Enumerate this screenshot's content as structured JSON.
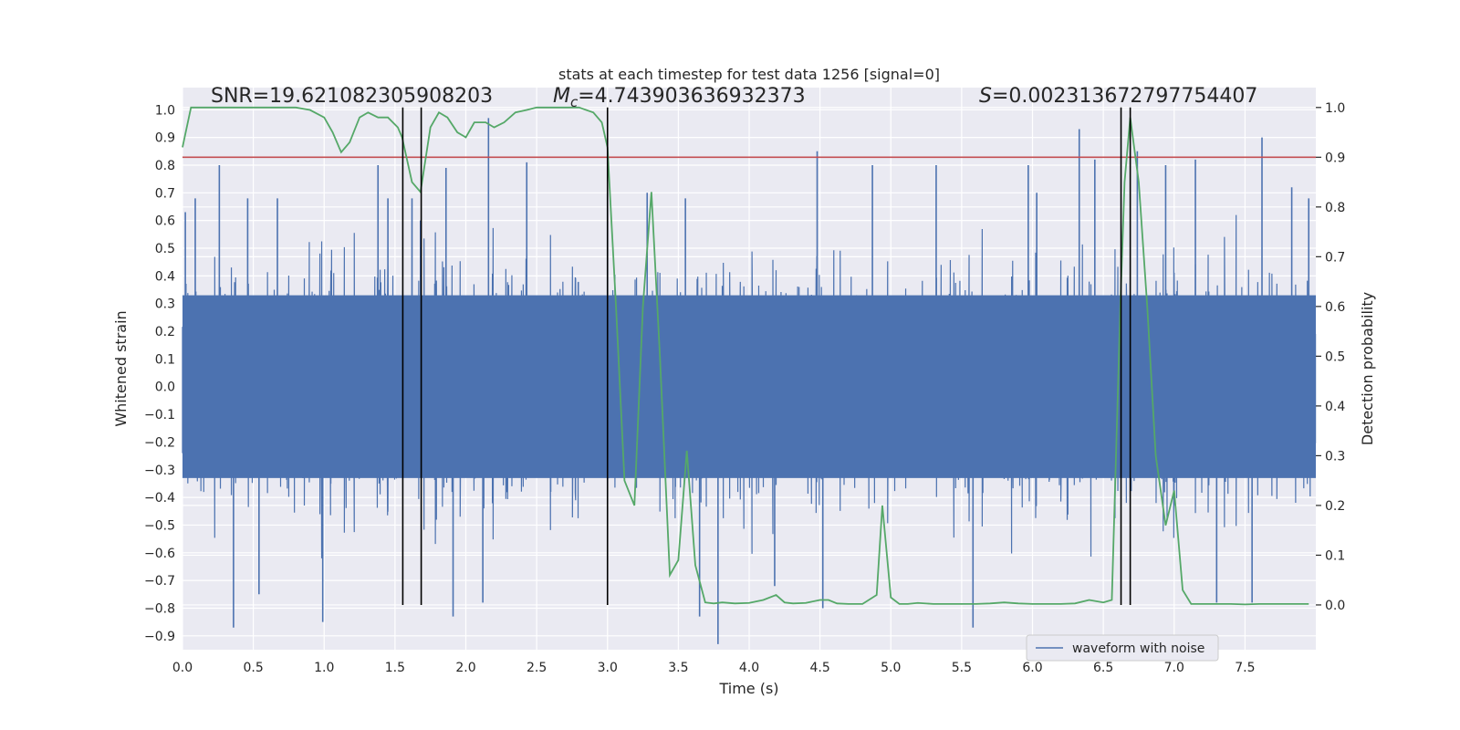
{
  "chart_data": {
    "type": "line",
    "title": "stats at each timestep for test data 1256 [signal=0]",
    "xlabel": "Time (s)",
    "ylabel": "Whitened strain",
    "ylabel_right": "Detection probability",
    "xlim": [
      0.0,
      8.0
    ],
    "ylim": [
      -0.95,
      1.08
    ],
    "ylim_right": [
      -0.09,
      1.04
    ],
    "x_ticks": [
      0.0,
      0.5,
      1.0,
      1.5,
      2.0,
      2.5,
      3.0,
      3.5,
      4.0,
      4.5,
      5.0,
      5.5,
      6.0,
      6.5,
      7.0,
      7.5
    ],
    "x_tick_labels": [
      "0.0",
      "0.5",
      "1.0",
      "1.5",
      "2.0",
      "2.5",
      "3.0",
      "3.5",
      "4.0",
      "4.5",
      "5.0",
      "5.5",
      "6.0",
      "6.5",
      "7.0",
      "7.5"
    ],
    "y_ticks": [
      -0.9,
      -0.8,
      -0.7,
      -0.6,
      -0.5,
      -0.4,
      -0.3,
      -0.2,
      -0.1,
      0.0,
      0.1,
      0.2,
      0.3,
      0.4,
      0.5,
      0.6,
      0.7,
      0.8,
      0.9,
      1.0
    ],
    "y_tick_labels": [
      "−0.9",
      "−0.8",
      "−0.7",
      "−0.6",
      "−0.5",
      "−0.4",
      "−0.3",
      "−0.2",
      "−0.1",
      "0.0",
      "0.1",
      "0.2",
      "0.3",
      "0.4",
      "0.5",
      "0.6",
      "0.7",
      "0.8",
      "0.9",
      "1.0"
    ],
    "y_ticks_right": [
      0.0,
      0.1,
      0.2,
      0.3,
      0.4,
      0.5,
      0.6,
      0.7,
      0.8,
      0.9,
      1.0
    ],
    "y_tick_labels_right": [
      "0.0",
      "0.1",
      "0.2",
      "0.3",
      "0.4",
      "0.5",
      "0.6",
      "0.7",
      "0.8",
      "0.9",
      "1.0"
    ],
    "grid": true,
    "annotations": [
      {
        "text": "SNR=19.621082305908203",
        "x": 0.2,
        "y": 1.02
      },
      {
        "math_symbol": "M",
        "math_sub": "c",
        "value_text": "=4.743903636932373",
        "x": 2.6,
        "y": 1.02
      },
      {
        "math_symbol": "S",
        "value_text": "=0.002313672797754407",
        "x": 5.6,
        "y": 1.02
      }
    ],
    "series": [
      {
        "name": "waveform with noise",
        "axis": "left",
        "color": "#4c72b0",
        "description": "dense whitened-strain noise, 4096 Hz",
        "core_amplitude": 0.33,
        "peaks": [
          {
            "x": 0.02,
            "y": 0.63
          },
          {
            "x": 0.09,
            "y": 0.68
          },
          {
            "x": 0.26,
            "y": 0.8
          },
          {
            "x": 0.36,
            "y": -0.87
          },
          {
            "x": 0.46,
            "y": 0.68
          },
          {
            "x": 0.54,
            "y": -0.75
          },
          {
            "x": 0.67,
            "y": 0.68
          },
          {
            "x": 0.99,
            "y": -0.85
          },
          {
            "x": 1.38,
            "y": 0.8
          },
          {
            "x": 1.45,
            "y": 0.68
          },
          {
            "x": 1.62,
            "y": 0.68
          },
          {
            "x": 1.68,
            "y": 0.6
          },
          {
            "x": 1.86,
            "y": 0.79
          },
          {
            "x": 1.91,
            "y": -0.83
          },
          {
            "x": 2.12,
            "y": -0.78
          },
          {
            "x": 2.16,
            "y": 0.97
          },
          {
            "x": 2.43,
            "y": 0.81
          },
          {
            "x": 3.0,
            "y": 0.7
          },
          {
            "x": 3.28,
            "y": 0.7
          },
          {
            "x": 3.55,
            "y": 0.68
          },
          {
            "x": 3.65,
            "y": -0.83
          },
          {
            "x": 3.78,
            "y": -0.93
          },
          {
            "x": 4.18,
            "y": -0.72
          },
          {
            "x": 4.48,
            "y": 0.85
          },
          {
            "x": 4.52,
            "y": -0.8
          },
          {
            "x": 4.87,
            "y": 0.8
          },
          {
            "x": 5.32,
            "y": 0.8
          },
          {
            "x": 5.58,
            "y": -0.87
          },
          {
            "x": 5.97,
            "y": 0.8
          },
          {
            "x": 6.03,
            "y": 0.7
          },
          {
            "x": 6.33,
            "y": 0.93
          },
          {
            "x": 6.44,
            "y": 0.82
          },
          {
            "x": 6.74,
            "y": 0.85
          },
          {
            "x": 6.94,
            "y": 0.8
          },
          {
            "x": 7.15,
            "y": 0.82
          },
          {
            "x": 7.3,
            "y": -0.78
          },
          {
            "x": 7.55,
            "y": -0.78
          },
          {
            "x": 7.62,
            "y": 0.9
          },
          {
            "x": 7.83,
            "y": 0.72
          },
          {
            "x": 7.95,
            "y": 0.68
          }
        ]
      },
      {
        "name": "detection probability",
        "axis": "right",
        "color": "#55a868",
        "x": [
          0.0,
          0.06,
          0.12,
          0.2,
          0.3,
          0.4,
          0.5,
          0.6,
          0.7,
          0.8,
          0.9,
          1.0,
          1.06,
          1.12,
          1.18,
          1.25,
          1.31,
          1.38,
          1.45,
          1.52,
          1.55,
          1.62,
          1.68,
          1.75,
          1.81,
          1.87,
          1.94,
          2.0,
          2.06,
          2.14,
          2.2,
          2.27,
          2.35,
          2.43,
          2.5,
          2.6,
          2.7,
          2.8,
          2.9,
          2.96,
          3.0,
          3.06,
          3.12,
          3.19,
          3.25,
          3.31,
          3.37,
          3.44,
          3.5,
          3.56,
          3.62,
          3.69,
          3.75,
          3.81,
          3.9,
          4.0,
          4.1,
          4.19,
          4.25,
          4.31,
          4.4,
          4.5,
          4.56,
          4.62,
          4.7,
          4.8,
          4.9,
          4.94,
          5.0,
          5.06,
          5.12,
          5.19,
          5.3,
          5.4,
          5.5,
          5.6,
          5.7,
          5.8,
          5.9,
          6.0,
          6.1,
          6.2,
          6.3,
          6.4,
          6.5,
          6.56,
          6.62,
          6.65,
          6.69,
          6.75,
          6.81,
          6.87,
          6.94,
          7.0,
          7.06,
          7.12,
          7.25,
          7.4,
          7.5,
          7.6,
          7.75,
          7.9,
          7.95
        ],
        "values": [
          0.92,
          1.0,
          1.0,
          1.0,
          1.0,
          1.0,
          1.0,
          1.0,
          1.0,
          1.0,
          0.995,
          0.98,
          0.95,
          0.91,
          0.93,
          0.98,
          0.99,
          0.98,
          0.98,
          0.96,
          0.94,
          0.85,
          0.83,
          0.96,
          0.99,
          0.98,
          0.95,
          0.94,
          0.97,
          0.97,
          0.96,
          0.97,
          0.99,
          0.995,
          1.0,
          1.0,
          1.0,
          1.0,
          0.99,
          0.97,
          0.92,
          0.6,
          0.25,
          0.2,
          0.6,
          0.83,
          0.5,
          0.06,
          0.09,
          0.31,
          0.08,
          0.005,
          0.003,
          0.005,
          0.003,
          0.004,
          0.01,
          0.02,
          0.005,
          0.003,
          0.004,
          0.01,
          0.01,
          0.003,
          0.002,
          0.002,
          0.02,
          0.2,
          0.015,
          0.002,
          0.002,
          0.004,
          0.002,
          0.002,
          0.002,
          0.002,
          0.003,
          0.005,
          0.003,
          0.002,
          0.002,
          0.002,
          0.003,
          0.01,
          0.005,
          0.01,
          0.6,
          0.85,
          0.98,
          0.85,
          0.6,
          0.3,
          0.16,
          0.23,
          0.03,
          0.002,
          0.002,
          0.002,
          0.001,
          0.002,
          0.002,
          0.002,
          0.002
        ]
      }
    ],
    "threshold_line": {
      "axis": "right",
      "y": 0.9,
      "color": "#c44e52"
    },
    "vertical_markers": {
      "color": "#000000",
      "x": [
        1.555,
        1.685,
        3.0,
        6.625,
        6.69
      ],
      "ymin_right": 0.0,
      "ymax_right": 1.0
    },
    "legend": {
      "placement": "lower-right",
      "entries": [
        "waveform with noise"
      ]
    }
  }
}
